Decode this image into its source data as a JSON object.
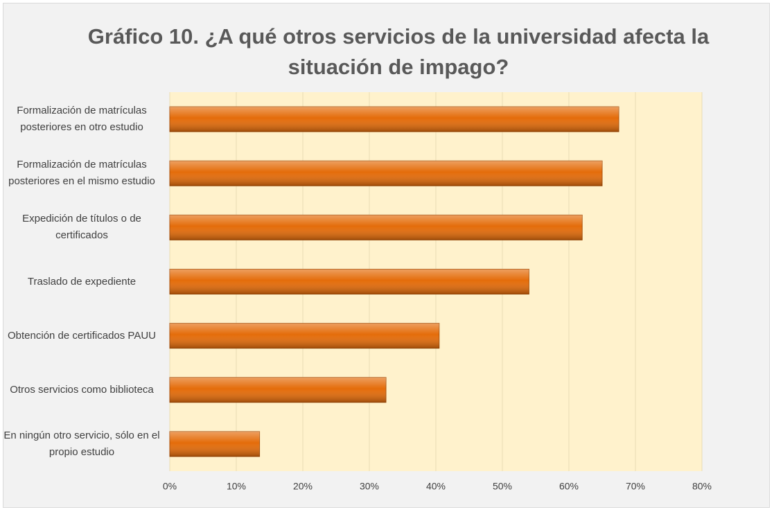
{
  "chart_data": {
    "type": "hbar",
    "title": "Gráfico 10. ¿A qué otros servicios de la universidad afecta la situación de impago?",
    "categories": [
      "Formalización de matrículas posteriores en otro estudio",
      "Formalización de matrículas posteriores en el mismo estudio",
      "Expedición de títulos o de certificados",
      "Traslado de expediente",
      "Obtención de certificados PAUU",
      "Otros servicios como biblioteca",
      "En ningún otro servicio, sólo en el propio estudio"
    ],
    "values": [
      67.5,
      65,
      62,
      54,
      40.5,
      32.5,
      13.5
    ],
    "color": "#e46c0a",
    "xlim": [
      0,
      80
    ],
    "xticks": [
      {
        "value": 0,
        "label": "0%"
      },
      {
        "value": 10,
        "label": "10%"
      },
      {
        "value": 20,
        "label": "20%"
      },
      {
        "value": 30,
        "label": "30%"
      },
      {
        "value": 40,
        "label": "40%"
      },
      {
        "value": 50,
        "label": "50%"
      },
      {
        "value": 60,
        "label": "60%"
      },
      {
        "value": 70,
        "label": "70%"
      },
      {
        "value": 80,
        "label": "80%"
      }
    ],
    "grid": true
  }
}
